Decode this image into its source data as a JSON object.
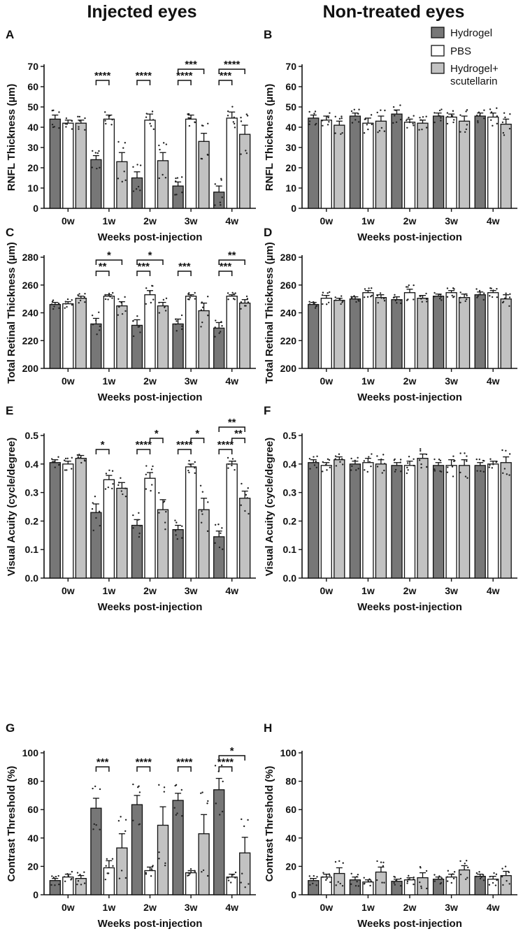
{
  "figure": {
    "column_titles": [
      "Injected eyes",
      "Non-treated eyes"
    ],
    "legend": [
      {
        "name": "Hydrogel",
        "color": "#777777"
      },
      {
        "name": "PBS",
        "color": "#ffffff"
      },
      {
        "name": "Hydrogel+ scutellarin",
        "color": "#c2c2c2"
      }
    ]
  },
  "chart_data": [
    {
      "panel": "A",
      "type": "bar",
      "ylabel": "RNFL Thickness (µm)",
      "xlabel": "Weeks post-injection",
      "categories": [
        "0w",
        "1w",
        "2w",
        "3w",
        "4w"
      ],
      "ylim": [
        0,
        70
      ],
      "yticks": [
        0,
        10,
        20,
        30,
        40,
        50,
        60,
        70
      ],
      "ytick_labels": [
        "0",
        "10",
        "20",
        "30",
        "40",
        "50",
        "60",
        "70"
      ],
      "series": [
        {
          "name": "Hydrogel",
          "values": [
            44,
            24,
            15,
            11,
            8
          ],
          "errors": [
            2,
            2,
            3,
            2,
            3
          ]
        },
        {
          "name": "PBS",
          "values": [
            42,
            44,
            43.5,
            44,
            44.5
          ],
          "errors": [
            1.5,
            2,
            3,
            2,
            3
          ]
        },
        {
          "name": "Hydrogel+ scutellarin",
          "values": [
            42,
            23,
            23.5,
            33,
            36.5
          ],
          "errors": [
            1.5,
            4.5,
            4,
            4,
            4.5
          ]
        }
      ],
      "significance": [
        {
          "category": 1,
          "from": 0,
          "to": 1,
          "level": 1,
          "label": "****"
        },
        {
          "category": 2,
          "from": 0,
          "to": 1,
          "level": 1,
          "label": "****"
        },
        {
          "category": 3,
          "from": 0,
          "to": 1,
          "level": 1,
          "label": "****"
        },
        {
          "category": 3,
          "from": 0,
          "to": 2,
          "level": 2,
          "label": "***"
        },
        {
          "category": 4,
          "from": 0,
          "to": 1,
          "level": 1,
          "label": "***"
        },
        {
          "category": 4,
          "from": 0,
          "to": 2,
          "level": 2,
          "label": "****"
        }
      ]
    },
    {
      "panel": "B",
      "type": "bar",
      "ylabel": "RNFL Thickness (µm)",
      "xlabel": "Weeks post-injection",
      "categories": [
        "0w",
        "1w",
        "2w",
        "3w",
        "4w"
      ],
      "ylim": [
        0,
        70
      ],
      "yticks": [
        0,
        10,
        20,
        30,
        40,
        50,
        60,
        70
      ],
      "ytick_labels": [
        "0",
        "10",
        "20",
        "30",
        "40",
        "50",
        "60",
        "70"
      ],
      "series": [
        {
          "name": "Hydrogel",
          "values": [
            44.5,
            45.5,
            46.5,
            45.5,
            45.5
          ],
          "errors": [
            1.5,
            1.5,
            2,
            1.5,
            1.5
          ]
        },
        {
          "name": "PBS",
          "values": [
            43.5,
            42,
            42.5,
            45,
            45
          ],
          "errors": [
            2,
            2.5,
            1.5,
            1.5,
            2
          ]
        },
        {
          "name": "Hydrogel+ scutellarin",
          "values": [
            41,
            43,
            42,
            43,
            41.5
          ],
          "errors": [
            2,
            2.5,
            1.5,
            2.5,
            2.5
          ]
        }
      ],
      "significance": []
    },
    {
      "panel": "C",
      "type": "bar",
      "ylabel": "Total Retinal Thickness (µm)",
      "xlabel": "Weeks post-injection",
      "categories": [
        "0w",
        "1w",
        "2w",
        "3w",
        "4w"
      ],
      "ylim": [
        200,
        280
      ],
      "yticks": [
        200,
        220,
        240,
        260,
        280
      ],
      "ytick_labels": [
        "200",
        "220",
        "240",
        "260",
        "280"
      ],
      "series": [
        {
          "name": "Hydrogel",
          "values": [
            246,
            232,
            231,
            232,
            229
          ],
          "errors": [
            1.5,
            4,
            4,
            3.5,
            4
          ]
        },
        {
          "name": "PBS",
          "values": [
            246.5,
            252,
            253,
            252,
            252
          ],
          "errors": [
            1.5,
            1,
            3,
            1,
            1
          ]
        },
        {
          "name": "Hydrogel+ scutellarin",
          "values": [
            250.5,
            245,
            245,
            241.5,
            247
          ],
          "errors": [
            1.5,
            3,
            2.5,
            5.5,
            2.5
          ]
        }
      ],
      "significance": [
        {
          "category": 1,
          "from": 0,
          "to": 1,
          "level": 1,
          "label": "**"
        },
        {
          "category": 1,
          "from": 0,
          "to": 2,
          "level": 2,
          "label": "*"
        },
        {
          "category": 2,
          "from": 0,
          "to": 1,
          "level": 1,
          "label": "***"
        },
        {
          "category": 2,
          "from": 0,
          "to": 2,
          "level": 2,
          "label": "*"
        },
        {
          "category": 3,
          "from": 0,
          "to": 1,
          "level": 1,
          "label": "***"
        },
        {
          "category": 4,
          "from": 0,
          "to": 1,
          "level": 1,
          "label": "***"
        },
        {
          "category": 4,
          "from": 0,
          "to": 2,
          "level": 2,
          "label": "**"
        }
      ]
    },
    {
      "panel": "D",
      "type": "bar",
      "ylabel": "Total Retinal Thickness (µm)",
      "xlabel": "Weeks post-injection",
      "categories": [
        "0w",
        "1w",
        "2w",
        "3w",
        "4w"
      ],
      "ylim": [
        200,
        280
      ],
      "yticks": [
        200,
        220,
        240,
        260,
        280
      ],
      "ytick_labels": [
        "200",
        "220",
        "240",
        "260",
        "280"
      ],
      "series": [
        {
          "name": "Hydrogel",
          "values": [
            246,
            250,
            249.5,
            252,
            253
          ],
          "errors": [
            1.5,
            1.5,
            2,
            1.5,
            2
          ]
        },
        {
          "name": "PBS",
          "values": [
            250.5,
            254.5,
            254.5,
            254.5,
            254.5
          ],
          "errors": [
            2,
            1.5,
            2.5,
            1.5,
            1.5
          ]
        },
        {
          "name": "Hydrogel+ scutellarin",
          "values": [
            249,
            251,
            250.5,
            251,
            250
          ],
          "errors": [
            1.5,
            2,
            2,
            2.5,
            3
          ]
        }
      ],
      "significance": []
    },
    {
      "panel": "E",
      "type": "bar",
      "ylabel": "Visual Acuity (cycle/degree)",
      "xlabel": "Weeks post-injection",
      "categories": [
        "0w",
        "1w",
        "2w",
        "3w",
        "4w"
      ],
      "ylim": [
        0,
        0.5
      ],
      "yticks": [
        0,
        0.1,
        0.2,
        0.3,
        0.4,
        0.5
      ],
      "ytick_labels": [
        "0.0",
        "0.1",
        "0.2",
        "0.3",
        "0.4",
        "0.5"
      ],
      "series": [
        {
          "name": "Hydrogel",
          "values": [
            0.405,
            0.23,
            0.185,
            0.17,
            0.145
          ],
          "errors": [
            0.01,
            0.03,
            0.02,
            0.015,
            0.02
          ]
        },
        {
          "name": "PBS",
          "values": [
            0.4,
            0.345,
            0.35,
            0.39,
            0.4
          ],
          "errors": [
            0.01,
            0.015,
            0.02,
            0.01,
            0.01
          ]
        },
        {
          "name": "Hydrogel+ scutellarin",
          "values": [
            0.42,
            0.315,
            0.24,
            0.24,
            0.28
          ],
          "errors": [
            0.01,
            0.02,
            0.035,
            0.04,
            0.025
          ]
        }
      ],
      "significance": [
        {
          "category": 1,
          "from": 0,
          "to": 1,
          "level": 1,
          "label": "*"
        },
        {
          "category": 2,
          "from": 0,
          "to": 1,
          "level": 1,
          "label": "****"
        },
        {
          "category": 2,
          "from": 1,
          "to": 2,
          "level": 2,
          "label": "*"
        },
        {
          "category": 3,
          "from": 0,
          "to": 1,
          "level": 1,
          "label": "****"
        },
        {
          "category": 3,
          "from": 1,
          "to": 2,
          "level": 2,
          "label": "*"
        },
        {
          "category": 4,
          "from": 0,
          "to": 1,
          "level": 1,
          "label": "****"
        },
        {
          "category": 4,
          "from": 1,
          "to": 2,
          "level": 2,
          "label": "**"
        },
        {
          "category": 4,
          "from": 0,
          "to": 2,
          "level": 3,
          "label": "**"
        }
      ]
    },
    {
      "panel": "F",
      "type": "bar",
      "ylabel": "Visual Acuity (cycle/degree)",
      "xlabel": "Weeks post-injection",
      "categories": [
        "0w",
        "1w",
        "2w",
        "3w",
        "4w"
      ],
      "ylim": [
        0,
        0.5
      ],
      "yticks": [
        0,
        0.1,
        0.2,
        0.3,
        0.4,
        0.5
      ],
      "ytick_labels": [
        "0.0",
        "0.1",
        "0.2",
        "0.3",
        "0.4",
        "0.5"
      ],
      "series": [
        {
          "name": "Hydrogel",
          "values": [
            0.405,
            0.4,
            0.395,
            0.395,
            0.395
          ],
          "errors": [
            0.01,
            0.01,
            0.01,
            0.01,
            0.01
          ]
        },
        {
          "name": "PBS",
          "values": [
            0.395,
            0.405,
            0.395,
            0.395,
            0.4
          ],
          "errors": [
            0.01,
            0.015,
            0.015,
            0.02,
            0.01
          ]
        },
        {
          "name": "Hydrogel+ scutellarin",
          "values": [
            0.415,
            0.4,
            0.42,
            0.395,
            0.405
          ],
          "errors": [
            0.01,
            0.015,
            0.015,
            0.02,
            0.02
          ]
        }
      ],
      "significance": []
    },
    {
      "panel": "G",
      "type": "bar",
      "ylabel": "Contrast Threshold (%)",
      "xlabel": "Weeks post-injection",
      "categories": [
        "0w",
        "1w",
        "2w",
        "3w",
        "4w"
      ],
      "ylim": [
        0,
        100
      ],
      "yticks": [
        0,
        20,
        40,
        60,
        80,
        100
      ],
      "ytick_labels": [
        "0",
        "20",
        "40",
        "60",
        "80",
        "100"
      ],
      "series": [
        {
          "name": "Hydrogel",
          "values": [
            10,
            61,
            63.5,
            66.5,
            74
          ],
          "errors": [
            1.5,
            7,
            6.5,
            5,
            8
          ]
        },
        {
          "name": "PBS",
          "values": [
            12.5,
            19,
            17,
            15.5,
            12.5
          ],
          "errors": [
            2,
            5,
            2.5,
            1.5,
            2
          ]
        },
        {
          "name": "Hydrogel+ scutellarin",
          "values": [
            11.5,
            33,
            49,
            43,
            29.5
          ],
          "errors": [
            2,
            10,
            13,
            13.5,
            11
          ]
        }
      ],
      "significance": [
        {
          "category": 1,
          "from": 0,
          "to": 1,
          "level": 1,
          "label": "***"
        },
        {
          "category": 2,
          "from": 0,
          "to": 1,
          "level": 1,
          "label": "****"
        },
        {
          "category": 3,
          "from": 0,
          "to": 1,
          "level": 1,
          "label": "****"
        },
        {
          "category": 4,
          "from": 0,
          "to": 1,
          "level": 1,
          "label": "****"
        },
        {
          "category": 4,
          "from": 0,
          "to": 2,
          "level": 2,
          "label": "*"
        }
      ]
    },
    {
      "panel": "H",
      "type": "bar",
      "ylabel": "Contrast Threshold (%)",
      "xlabel": "Weeks post-injection",
      "categories": [
        "0w",
        "1w",
        "2w",
        "3w",
        "4w"
      ],
      "ylim": [
        0,
        100
      ],
      "yticks": [
        0,
        20,
        40,
        60,
        80,
        100
      ],
      "ytick_labels": [
        "0",
        "20",
        "40",
        "60",
        "80",
        "100"
      ],
      "series": [
        {
          "name": "Hydrogel",
          "values": [
            10,
            10.5,
            9.5,
            11,
            13
          ],
          "errors": [
            1.5,
            2,
            1.5,
            1.5,
            1.5
          ]
        },
        {
          "name": "PBS",
          "values": [
            12.5,
            9,
            10.5,
            12.5,
            11
          ],
          "errors": [
            2,
            1.5,
            1.5,
            2,
            2
          ]
        },
        {
          "name": "Hydrogel+ scutellarin",
          "values": [
            15,
            16,
            12,
            17.5,
            13.5
          ],
          "errors": [
            4,
            3.5,
            3.5,
            3,
            3
          ]
        }
      ],
      "significance": []
    }
  ]
}
